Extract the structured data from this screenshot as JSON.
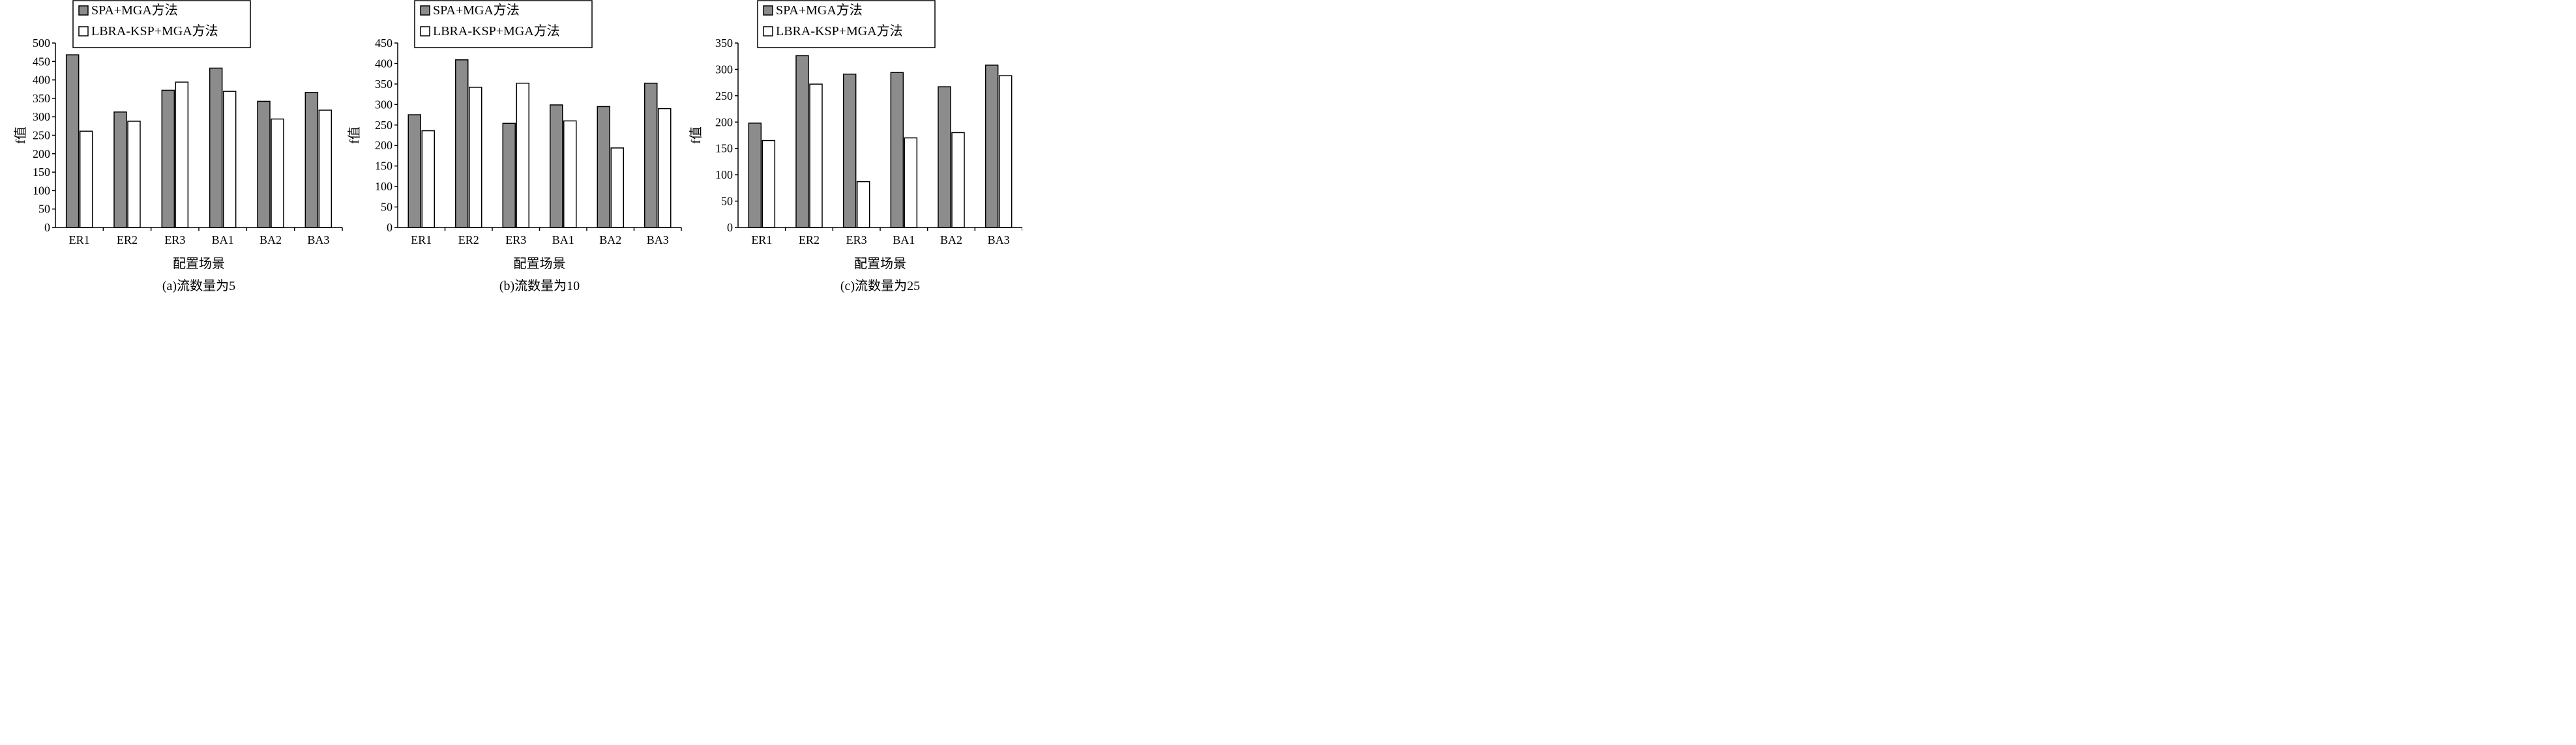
{
  "colors": {
    "series_1": "#8c8c8c",
    "series_2": "#ffffff",
    "stroke": "#000000"
  },
  "chart_data": [
    {
      "type": "bar",
      "caption": "(a)流数量为5",
      "xlabel": "配置场景",
      "ylabel": "f值",
      "categories": [
        "ER1",
        "ER2",
        "ER3",
        "BA1",
        "BA2",
        "BA3"
      ],
      "ylim": [
        0,
        500
      ],
      "yticks": [
        0,
        50,
        100,
        150,
        200,
        250,
        300,
        350,
        400,
        450,
        500
      ],
      "grid": false,
      "legend_position": "top-left",
      "series": [
        {
          "name": "SPA+MGA方法",
          "values": [
            468,
            313,
            372,
            432,
            342,
            366
          ]
        },
        {
          "name": "LBRA-KSP+MGA方法",
          "values": [
            261,
            288,
            394,
            369,
            294,
            318
          ]
        }
      ]
    },
    {
      "type": "bar",
      "caption": "(b)流数量为10",
      "xlabel": "配置场景",
      "ylabel": "f值",
      "categories": [
        "ER1",
        "ER2",
        "ER3",
        "BA1",
        "BA2",
        "BA3"
      ],
      "ylim": [
        0,
        450
      ],
      "yticks": [
        0,
        50,
        100,
        150,
        200,
        250,
        300,
        350,
        400,
        450
      ],
      "grid": false,
      "legend_position": "top-left",
      "series": [
        {
          "name": "SPA+MGA方法",
          "values": [
            275,
            409,
            254,
            299,
            295,
            352
          ]
        },
        {
          "name": "LBRA-KSP+MGA方法",
          "values": [
            236,
            342,
            352,
            260,
            194,
            290
          ]
        }
      ]
    },
    {
      "type": "bar",
      "caption": "(c)流数量为25",
      "xlabel": "配置场景",
      "ylabel": "f值",
      "categories": [
        "ER1",
        "ER2",
        "ER3",
        "BA1",
        "BA2",
        "BA3"
      ],
      "ylim": [
        0,
        350
      ],
      "yticks": [
        0,
        50,
        100,
        150,
        200,
        250,
        300,
        350
      ],
      "grid": false,
      "legend_position": "top-left",
      "series": [
        {
          "name": "SPA+MGA方法",
          "values": [
            198,
            326,
            291,
            294,
            267,
            308
          ]
        },
        {
          "name": "LBRA-KSP+MGA方法",
          "values": [
            165,
            272,
            87,
            170,
            180,
            288
          ]
        }
      ]
    }
  ]
}
